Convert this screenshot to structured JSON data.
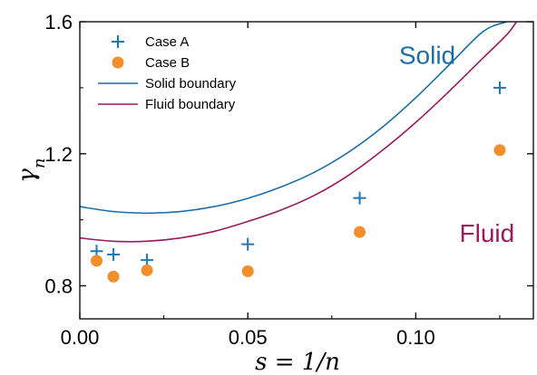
{
  "chart_data": {
    "type": "scatter",
    "xlabel": "s = 1/n",
    "ylabel": "γ_n",
    "xlim": [
      0,
      0.135
    ],
    "ylim": [
      0.7,
      1.6
    ],
    "x_ticks": [
      0.0,
      0.05,
      0.1
    ],
    "x_tick_labels": [
      "0.00",
      "0.05",
      "0.10"
    ],
    "y_ticks": [
      0.8,
      1.2,
      1.6
    ],
    "y_tick_labels": [
      "0.8",
      "1.2",
      "1.6"
    ],
    "legend_position": "top-left",
    "series": [
      {
        "name": "Case A",
        "kind": "markers",
        "marker": "plus",
        "color": "#1f77b4",
        "x": [
          0.005,
          0.01,
          0.02,
          0.05,
          0.0833,
          0.125
        ],
        "y": [
          0.905,
          0.895,
          0.878,
          0.926,
          1.066,
          1.4
        ]
      },
      {
        "name": "Case B",
        "kind": "markers",
        "marker": "circle",
        "color": "#f28e2b",
        "x": [
          0.005,
          0.01,
          0.02,
          0.05,
          0.0833,
          0.125
        ],
        "y": [
          0.876,
          0.828,
          0.847,
          0.844,
          0.963,
          1.211
        ]
      },
      {
        "name": "Solid boundary",
        "kind": "line",
        "color": "#1b6fa8",
        "x": [
          0.0,
          0.01,
          0.02,
          0.03,
          0.04,
          0.05,
          0.06,
          0.07,
          0.08,
          0.09,
          0.1,
          0.11,
          0.12,
          0.127
        ],
        "y": [
          1.04,
          1.025,
          1.02,
          1.025,
          1.04,
          1.065,
          1.1,
          1.145,
          1.205,
          1.28,
          1.37,
          1.47,
          1.57,
          1.6
        ]
      },
      {
        "name": "Fluid boundary",
        "kind": "line",
        "color": "#9c1a5e",
        "x": [
          0.0,
          0.01,
          0.02,
          0.03,
          0.04,
          0.05,
          0.06,
          0.07,
          0.08,
          0.09,
          0.1,
          0.11,
          0.12,
          0.127,
          0.13
        ],
        "y": [
          0.945,
          0.935,
          0.935,
          0.945,
          0.965,
          0.995,
          1.03,
          1.075,
          1.135,
          1.21,
          1.295,
          1.39,
          1.49,
          1.56,
          1.6
        ]
      }
    ],
    "annotations": [
      {
        "text": "Solid",
        "x": 0.095,
        "y": 1.5,
        "color": "#1b6fa8"
      },
      {
        "text": "Fluid",
        "x": 0.113,
        "y": 0.96,
        "color": "#9c1a5e"
      }
    ]
  }
}
